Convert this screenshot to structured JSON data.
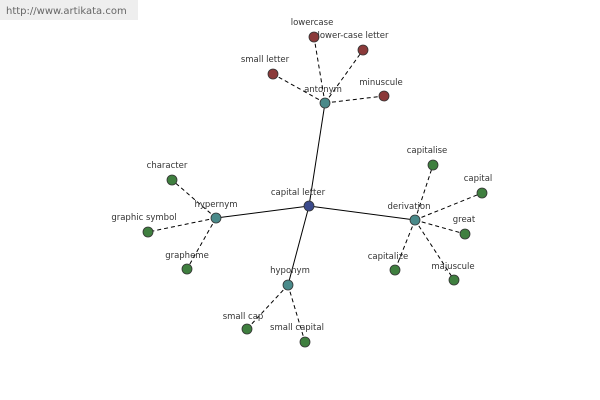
{
  "watermark": "http://www.artikata.com",
  "nodes": [
    {
      "label": "capital letter"
    },
    {
      "label": "antonym"
    },
    {
      "label": "hypernym"
    },
    {
      "label": "hyponym"
    },
    {
      "label": "derivation"
    },
    {
      "label": "lowercase"
    },
    {
      "label": "lower-case letter"
    },
    {
      "label": "small letter"
    },
    {
      "label": "minuscule"
    },
    {
      "label": "character"
    },
    {
      "label": "graphic symbol"
    },
    {
      "label": "grapheme"
    },
    {
      "label": "small cap"
    },
    {
      "label": "small capital"
    },
    {
      "label": "capitalise"
    },
    {
      "label": "capital"
    },
    {
      "label": "great"
    },
    {
      "label": "capitalize"
    },
    {
      "label": "majuscule"
    }
  ]
}
